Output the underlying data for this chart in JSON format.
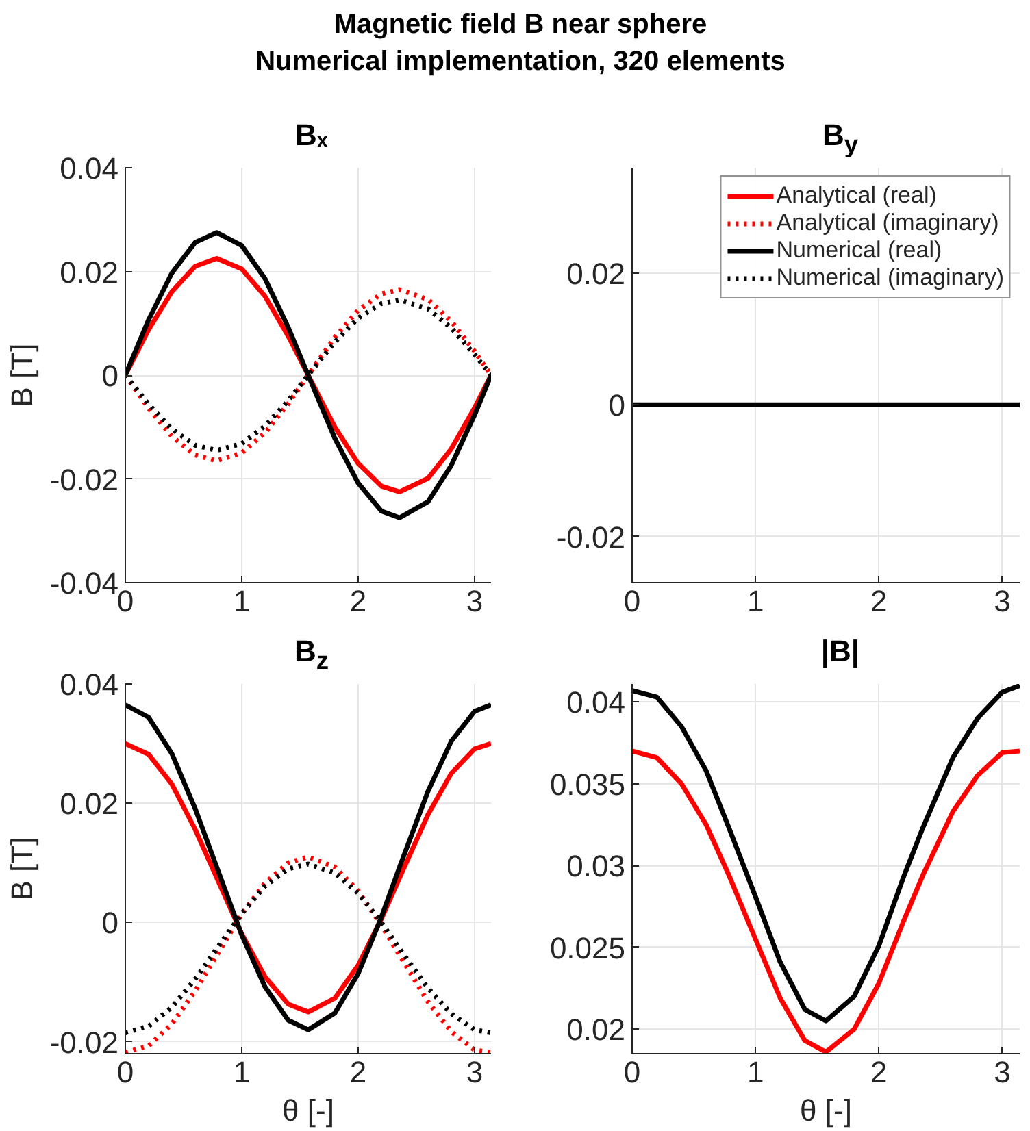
{
  "chart_data": [
    {
      "type": "line",
      "title": "Bₓ",
      "annotations": [
        "Magnetic field B near sphere",
        "Numerical implementation, 320 elements"
      ],
      "ylabel": "B [T]",
      "x": [
        0,
        0.2,
        0.4,
        0.6,
        0.785,
        1.0,
        1.2,
        1.4,
        1.571,
        1.8,
        2.0,
        2.2,
        2.356,
        2.6,
        2.8,
        3.0,
        3.1416
      ],
      "xlim": [
        0,
        3.1416
      ],
      "xticks": [
        0,
        1,
        2,
        3
      ],
      "ylim": [
        -0.04,
        0.04
      ],
      "yticks": [
        -0.04,
        -0.02,
        0,
        0.02,
        0.04
      ],
      "grid": true,
      "legend": false,
      "series": [
        {
          "color": "#ff0000",
          "line_style": "solid",
          "values": [
            0,
            0.0088,
            0.0161,
            0.021,
            0.0225,
            0.0205,
            0.0152,
            0.0075,
            0,
            -0.01,
            -0.017,
            -0.0214,
            -0.0225,
            -0.0199,
            -0.0142,
            -0.0063,
            0
          ]
        },
        {
          "color": "#ff0000",
          "line_style": "dotted",
          "values": [
            0,
            -0.0064,
            -0.0118,
            -0.0154,
            -0.0165,
            -0.015,
            -0.0111,
            -0.0055,
            0,
            0.0073,
            0.0125,
            0.0157,
            0.0165,
            0.0146,
            0.0104,
            0.0046,
            0
          ]
        },
        {
          "color": "#000000",
          "line_style": "solid",
          "values": [
            0,
            0.0107,
            0.0197,
            0.0256,
            0.0275,
            0.025,
            0.0186,
            0.0092,
            0,
            -0.0122,
            -0.0208,
            -0.0262,
            -0.0275,
            -0.0244,
            -0.0174,
            -0.0077,
            0
          ]
        },
        {
          "color": "#000000",
          "line_style": "dotted",
          "values": [
            0,
            -0.0056,
            -0.0104,
            -0.0135,
            -0.0145,
            -0.0132,
            -0.0098,
            -0.0049,
            0,
            0.0064,
            0.011,
            0.0138,
            0.0145,
            0.0128,
            0.0091,
            0.004,
            0
          ]
        }
      ]
    },
    {
      "type": "line",
      "title": "B$_{y}$",
      "x": [
        0,
        0.785,
        1.571,
        2.356,
        3.1416
      ],
      "xlim": [
        0,
        3.1416
      ],
      "xticks": [
        0,
        1,
        2,
        3
      ],
      "ylim": [
        -0.027,
        0.036
      ],
      "yticks": [
        -0.02,
        0,
        0.02
      ],
      "grid": true,
      "legend": "top right",
      "series": [
        {
          "name": "Analytical (real)",
          "color": "#ff0000",
          "line_style": "solid",
          "values": [
            null,
            null,
            null,
            null,
            null
          ]
        },
        {
          "name": "Analytical (imaginary)",
          "color": "#ff0000",
          "line_style": "dotted",
          "values": [
            null,
            null,
            null,
            null,
            null
          ]
        },
        {
          "name": "Numerical (real)",
          "color": "#000000",
          "line_style": "solid",
          "values": [
            0,
            0,
            0,
            0,
            0
          ]
        },
        {
          "name": "Numerical (imaginary)",
          "color": "#000000",
          "line_style": "dotted",
          "values": [
            null,
            null,
            null,
            null,
            null
          ]
        }
      ]
    },
    {
      "type": "line",
      "title": "B$_{z}$",
      "ylabel": "B [T]",
      "xlabel": "θ [-]",
      "x": [
        0,
        0.2,
        0.4,
        0.6,
        0.785,
        1.0,
        1.2,
        1.4,
        1.571,
        1.8,
        2.0,
        2.2,
        2.356,
        2.6,
        2.8,
        3.0,
        3.1416
      ],
      "xlim": [
        0,
        3.1416
      ],
      "xticks": [
        0,
        1,
        2,
        3
      ],
      "ylim": [
        -0.022,
        0.04
      ],
      "yticks": [
        -0.02,
        0,
        0.02,
        0.04
      ],
      "grid": true,
      "legend": false,
      "series": [
        {
          "color": "#ff0000",
          "line_style": "solid",
          "values": [
            0.03,
            0.0282,
            0.0232,
            0.0156,
            0.0075,
            -0.0019,
            -0.0091,
            -0.0137,
            -0.015,
            -0.0127,
            -0.0072,
            0.0006,
            0.0075,
            0.0181,
            0.025,
            0.0291,
            0.03
          ]
        },
        {
          "color": "#ff0000",
          "line_style": "dotted",
          "values": [
            -0.0218,
            -0.0207,
            -0.017,
            -0.0115,
            -0.0055,
            0.0014,
            0.0066,
            0.01,
            0.011,
            0.0093,
            0.0053,
            -0.0005,
            -0.0055,
            -0.0133,
            -0.0183,
            -0.0214,
            -0.0218
          ]
        },
        {
          "color": "#000000",
          "line_style": "solid",
          "values": [
            0.0365,
            0.0344,
            0.0283,
            0.0191,
            0.0093,
            -0.0021,
            -0.0108,
            -0.0164,
            -0.018,
            -0.0152,
            -0.0086,
            0.0009,
            0.0093,
            0.022,
            0.0304,
            0.0354,
            0.0365
          ]
        },
        {
          "color": "#000000",
          "line_style": "dotted",
          "values": [
            -0.0185,
            -0.0174,
            -0.0142,
            -0.0095,
            -0.0044,
            0.0015,
            0.0061,
            0.009,
            0.0098,
            0.0083,
            0.0049,
            0,
            -0.0044,
            -0.011,
            -0.0153,
            -0.018,
            -0.0185
          ]
        }
      ]
    },
    {
      "type": "line",
      "title": "|B|",
      "xlabel": "θ [-]",
      "x": [
        0,
        0.2,
        0.4,
        0.6,
        0.785,
        1.0,
        1.2,
        1.4,
        1.571,
        1.8,
        2.0,
        2.2,
        2.356,
        2.6,
        2.8,
        3.0,
        3.1416
      ],
      "xlim": [
        0,
        3.1416
      ],
      "xticks": [
        0,
        1,
        2,
        3
      ],
      "ylim": [
        0.0185,
        0.0411
      ],
      "yticks": [
        0.02,
        0.025,
        0.03,
        0.035,
        0.04
      ],
      "grid": true,
      "legend": false,
      "series": [
        {
          "color": "#ff0000",
          "line_style": "solid",
          "values": [
            0.037,
            0.0366,
            0.035,
            0.0325,
            0.0294,
            0.0255,
            0.0219,
            0.0193,
            0.0186,
            0.02,
            0.0228,
            0.0266,
            0.0294,
            0.0333,
            0.0355,
            0.0369,
            0.037
          ]
        },
        {
          "color": "#000000",
          "line_style": "solid",
          "values": [
            0.0407,
            0.0403,
            0.0385,
            0.0358,
            0.0323,
            0.0281,
            0.0241,
            0.0212,
            0.0205,
            0.022,
            0.0251,
            0.0293,
            0.0323,
            0.0366,
            0.039,
            0.0406,
            0.041
          ]
        }
      ]
    }
  ]
}
